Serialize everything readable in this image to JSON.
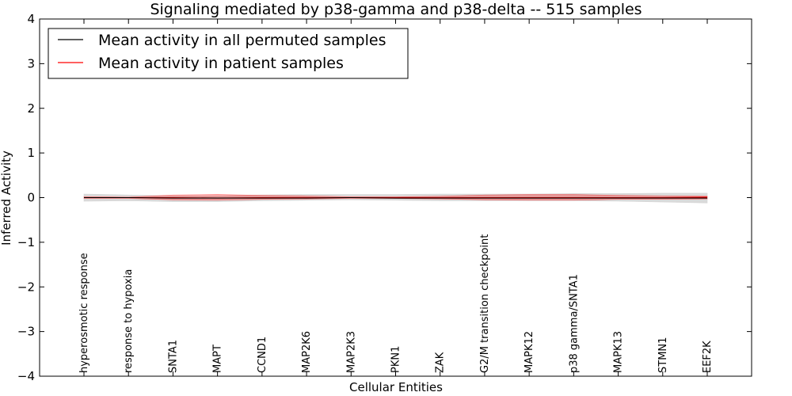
{
  "chart_data": {
    "type": "line",
    "title": "Signaling mediated by p38-gamma and p38-delta -- 515 samples",
    "xlabel": "Cellular Entities",
    "ylabel": "Inferred Activity",
    "ylim": [
      -4,
      4
    ],
    "yticks": [
      -4,
      -3,
      -2,
      -1,
      0,
      1,
      2,
      3,
      4
    ],
    "ytick_labels": [
      "−4",
      "−3",
      "−2",
      "−1",
      "0",
      "1",
      "2",
      "3",
      "4"
    ],
    "categories": [
      "hyperosmotic response",
      "response to hypoxia",
      "SNTA1",
      "MAPT",
      "CCND1",
      "MAP2K6",
      "MAP2K3",
      "PKN1",
      "ZAK",
      "G2/M transition checkpoint",
      "MAPK12",
      "p38 gamma/SNTA1",
      "MAPK13",
      "STMN1",
      "EEF2K"
    ],
    "legend": {
      "position": "top-left"
    },
    "series": [
      {
        "name": "Mean activity in all permuted samples",
        "color": "#000000",
        "values": [
          0.0,
          0.0,
          -0.01,
          -0.01,
          -0.01,
          -0.01,
          0.0,
          -0.01,
          -0.01,
          -0.01,
          -0.01,
          -0.01,
          -0.01,
          -0.01,
          -0.01
        ],
        "band_upper": [
          0.08,
          0.06,
          0.04,
          0.04,
          0.06,
          0.07,
          0.07,
          0.07,
          0.08,
          0.08,
          0.08,
          0.09,
          0.09,
          0.1,
          0.1
        ],
        "band_lower": [
          -0.08,
          -0.07,
          -0.09,
          -0.09,
          -0.07,
          -0.06,
          -0.05,
          -0.06,
          -0.07,
          -0.07,
          -0.07,
          -0.07,
          -0.08,
          -0.1,
          -0.12
        ],
        "band_color": "#d3d3d3"
      },
      {
        "name": "Mean activity in patient samples",
        "color": "#ff0000",
        "values": [
          0.0,
          0.0,
          0.0,
          -0.01,
          0.0,
          0.0,
          0.0,
          0.0,
          0.0,
          0.0,
          0.0,
          0.0,
          0.0,
          0.0,
          0.01
        ],
        "band_upper": [
          0.02,
          0.01,
          0.06,
          0.07,
          0.05,
          0.04,
          0.02,
          0.02,
          0.03,
          0.06,
          0.07,
          0.07,
          0.05,
          0.04,
          0.03
        ],
        "band_lower": [
          -0.02,
          -0.02,
          -0.05,
          -0.06,
          -0.04,
          -0.03,
          -0.02,
          -0.02,
          -0.03,
          -0.05,
          -0.06,
          -0.06,
          -0.04,
          -0.04,
          -0.03
        ],
        "band_color": "#ff0000"
      }
    ]
  }
}
